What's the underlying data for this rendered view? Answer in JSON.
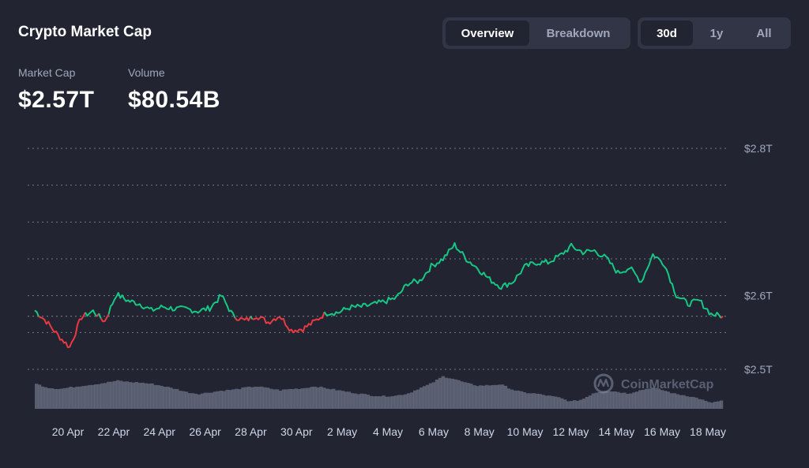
{
  "header": {
    "title": "Crypto Market Cap",
    "view_tabs": [
      {
        "label": "Overview",
        "active": true
      },
      {
        "label": "Breakdown",
        "active": false
      }
    ],
    "range_tabs": [
      {
        "label": "30d",
        "active": true
      },
      {
        "label": "1y",
        "active": false
      },
      {
        "label": "All",
        "active": false
      }
    ]
  },
  "stats": {
    "market_cap_label": "Market Cap",
    "market_cap_value": "$2.57T",
    "volume_label": "Volume",
    "volume_value": "$80.54B"
  },
  "watermark": {
    "text": "CoinMarketCap",
    "icon": "coinmarketcap-logo-icon"
  },
  "colors": {
    "background": "#222531",
    "up": "#16c784",
    "down": "#ea3943",
    "volume": "#858ca2",
    "grid": "#858ca2"
  },
  "chart_data": {
    "type": "line",
    "title": "",
    "y_axis": {
      "position": "right",
      "range": [
        2.5,
        2.8
      ],
      "gridlines": [
        2.5,
        2.55,
        2.6,
        2.65,
        2.7,
        2.75,
        2.8
      ],
      "tick_values": [
        2.5,
        2.6,
        2.8
      ],
      "tick_labels": [
        "$2.5T",
        "$2.6T",
        "$2.8T"
      ]
    },
    "x_axis": {
      "tick_labels": [
        "20 Apr",
        "22 Apr",
        "24 Apr",
        "26 Apr",
        "28 Apr",
        "30 Apr",
        "2 May",
        "4 May",
        "6 May",
        "8 May",
        "10 May",
        "12 May",
        "14 May",
        "16 May",
        "18 May"
      ]
    },
    "baseline_value": 2.572,
    "series": [
      {
        "key": "market_cap",
        "unit": "USD trillions",
        "x": [
          "19 Apr",
          "19.5 Apr",
          "20 Apr",
          "20.5 Apr",
          "21 Apr",
          "21.5 Apr",
          "22 Apr",
          "22.5 Apr",
          "23 Apr",
          "23.5 Apr",
          "24 Apr",
          "24.5 Apr",
          "25 Apr",
          "25.5 Apr",
          "26 Apr",
          "26.5 Apr",
          "27 Apr",
          "27.5 Apr",
          "28 Apr",
          "28.5 Apr",
          "29 Apr",
          "29.5 Apr",
          "30 Apr",
          "30.5 Apr",
          "1 May",
          "1.5 May",
          "2 May",
          "2.5 May",
          "3 May",
          "3.5 May",
          "4 May",
          "4.5 May",
          "5 May",
          "5.5 May",
          "6 May",
          "6.5 May",
          "7 May",
          "7.5 May",
          "8 May",
          "8.5 May",
          "9 May",
          "9.5 May",
          "10 May",
          "10.5 May",
          "11 May",
          "11.5 May",
          "12 May",
          "12.5 May",
          "13 May",
          "13.5 May",
          "14 May",
          "14.5 May",
          "15 May",
          "15.5 May",
          "16 May",
          "16.5 May",
          "17 May",
          "17.5 May",
          "18 May",
          "18.5 May"
        ],
        "values": [
          2.58,
          2.565,
          2.546,
          2.53,
          2.571,
          2.579,
          2.565,
          2.602,
          2.593,
          2.589,
          2.58,
          2.585,
          2.582,
          2.582,
          2.579,
          2.583,
          2.6,
          2.573,
          2.566,
          2.573,
          2.564,
          2.573,
          2.553,
          2.555,
          2.565,
          2.577,
          2.577,
          2.584,
          2.585,
          2.588,
          2.592,
          2.597,
          2.617,
          2.62,
          2.64,
          2.65,
          2.669,
          2.65,
          2.637,
          2.622,
          2.612,
          2.619,
          2.639,
          2.645,
          2.645,
          2.654,
          2.667,
          2.659,
          2.661,
          2.651,
          2.631,
          2.638,
          2.619,
          2.656,
          2.643,
          2.601,
          2.589,
          2.593,
          2.575,
          2.572
        ]
      },
      {
        "key": "volume",
        "unit": "relative",
        "values": [
          0.75,
          0.64,
          0.6,
          0.65,
          0.7,
          0.74,
          0.79,
          0.85,
          0.81,
          0.79,
          0.75,
          0.68,
          0.6,
          0.5,
          0.45,
          0.5,
          0.55,
          0.58,
          0.64,
          0.68,
          0.62,
          0.56,
          0.6,
          0.62,
          0.68,
          0.62,
          0.56,
          0.5,
          0.45,
          0.4,
          0.38,
          0.4,
          0.46,
          0.62,
          0.76,
          0.98,
          0.9,
          0.78,
          0.7,
          0.71,
          0.74,
          0.58,
          0.49,
          0.46,
          0.4,
          0.34,
          0.22,
          0.28,
          0.48,
          0.55,
          0.52,
          0.46,
          0.56,
          0.64,
          0.56,
          0.45,
          0.4,
          0.32,
          0.18,
          0.24
        ]
      }
    ]
  }
}
